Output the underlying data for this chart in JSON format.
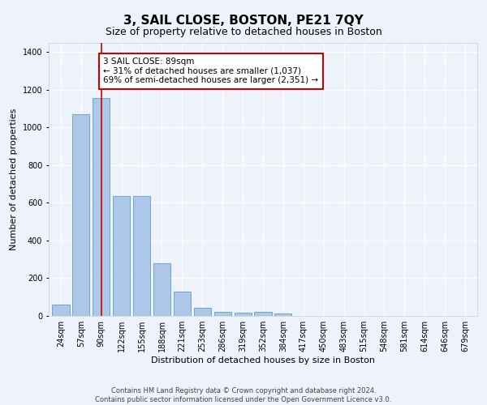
{
  "title": "3, SAIL CLOSE, BOSTON, PE21 7QY",
  "subtitle": "Size of property relative to detached houses in Boston",
  "xlabel": "Distribution of detached houses by size in Boston",
  "ylabel": "Number of detached properties",
  "categories": [
    "24sqm",
    "57sqm",
    "90sqm",
    "122sqm",
    "155sqm",
    "188sqm",
    "221sqm",
    "253sqm",
    "286sqm",
    "319sqm",
    "352sqm",
    "384sqm",
    "417sqm",
    "450sqm",
    "483sqm",
    "515sqm",
    "548sqm",
    "581sqm",
    "614sqm",
    "646sqm",
    "679sqm"
  ],
  "values": [
    62,
    1068,
    1155,
    635,
    635,
    280,
    130,
    45,
    20,
    18,
    20,
    14,
    0,
    0,
    0,
    0,
    0,
    0,
    0,
    0,
    0
  ],
  "bar_color": "#aec6e8",
  "bar_edge_color": "#5a9fd4",
  "vline_x": 2,
  "vline_color": "#cc0000",
  "annotation_text": "3 SAIL CLOSE: 89sqm\n← 31% of detached houses are smaller (1,037)\n69% of semi-detached houses are larger (2,351) →",
  "annotation_box_color": "#ffffff",
  "annotation_box_edge_color": "#cc0000",
  "ylim": [
    0,
    1450
  ],
  "yticks": [
    0,
    200,
    400,
    600,
    800,
    1000,
    1200,
    1400
  ],
  "footer_line1": "Contains HM Land Registry data © Crown copyright and database right 2024.",
  "footer_line2": "Contains public sector information licensed under the Open Government Licence v3.0.",
  "background_color": "#eef2fb",
  "grid_color": "#ffffff",
  "title_fontsize": 11,
  "subtitle_fontsize": 9,
  "xlabel_fontsize": 8,
  "ylabel_fontsize": 8,
  "tick_fontsize": 7,
  "annotation_fontsize": 7.5,
  "footer_fontsize": 6
}
